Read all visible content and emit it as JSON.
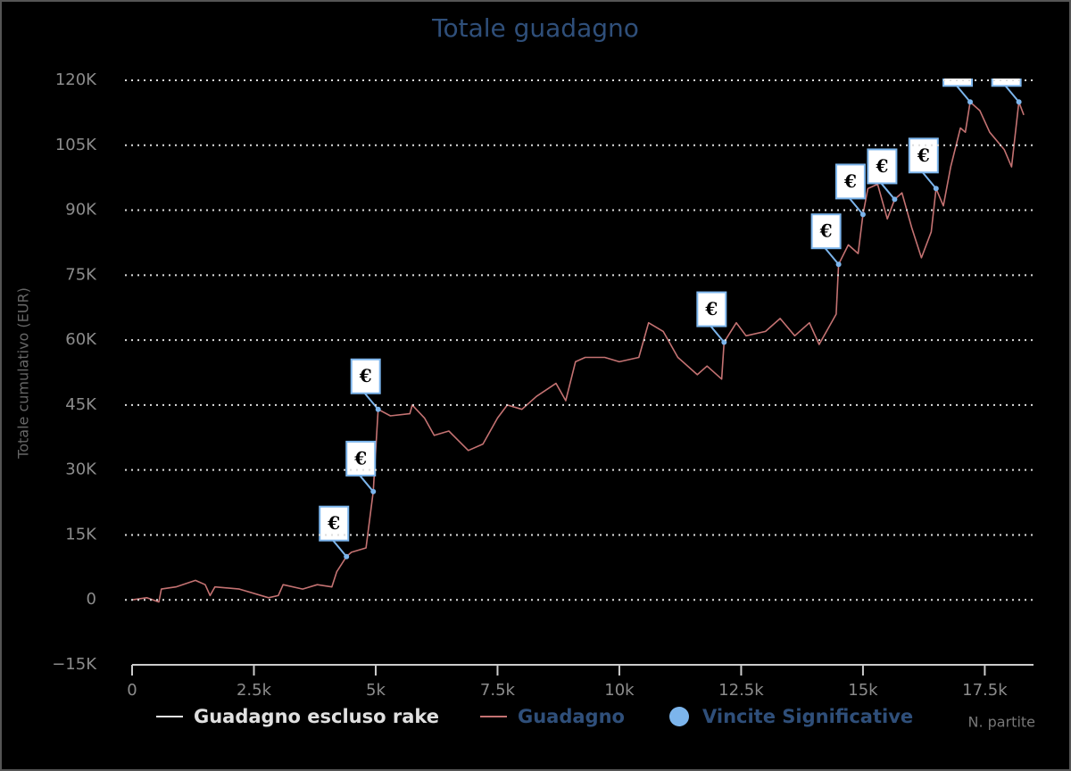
{
  "chart_data": {
    "type": "line",
    "title": "Totale guadagno",
    "y_label": "Totale cumulativo (EUR)",
    "x_label": "N. partite",
    "xlim": [
      0,
      18500
    ],
    "ylim": [
      -15000,
      120000
    ],
    "xticks": [
      0,
      {
        "value": 2500,
        "label": "2.5k"
      },
      {
        "value": 5000,
        "label": "5k"
      },
      {
        "value": 7500,
        "label": "7.5k"
      },
      {
        "value": 10000,
        "label": "10k"
      },
      {
        "value": 12500,
        "label": "12.5k"
      },
      {
        "value": 15000,
        "label": "15k"
      },
      {
        "value": 17500,
        "label": "17.5k"
      }
    ],
    "yticks": [
      {
        "value": -15000,
        "label": "−15K"
      },
      0,
      {
        "value": 15000,
        "label": "15K"
      },
      {
        "value": 30000,
        "label": "30K"
      },
      {
        "value": 45000,
        "label": "45K"
      },
      {
        "value": 60000,
        "label": "60K"
      },
      {
        "value": 75000,
        "label": "75K"
      },
      {
        "value": 90000,
        "label": "90K"
      },
      {
        "value": 105000,
        "label": "105K"
      },
      {
        "value": 120000,
        "label": "120K"
      }
    ],
    "grid": true,
    "x": [
      0,
      300,
      550,
      600,
      900,
      1300,
      1500,
      1600,
      1700,
      2200,
      2800,
      3000,
      3100,
      3500,
      3800,
      4100,
      4200,
      4400,
      4500,
      4800,
      4950,
      5050,
      5300,
      5700,
      5750,
      6000,
      6200,
      6500,
      6900,
      7200,
      7500,
      7700,
      8000,
      8300,
      8700,
      8900,
      9100,
      9300,
      9700,
      10000,
      10400,
      10600,
      10900,
      11200,
      11600,
      11800,
      12100,
      12150,
      12400,
      12600,
      13000,
      13300,
      13600,
      13900,
      14100,
      14300,
      14450,
      14500,
      14700,
      14900,
      15000,
      15100,
      15300,
      15500,
      15650,
      15800,
      16000,
      16200,
      16400,
      16500,
      16650,
      16800,
      17000,
      17100,
      17200,
      17400,
      17600,
      17900,
      18050,
      18200,
      18300
    ],
    "series": [
      {
        "name": "Guadagno escluso rake",
        "color": "#e8e8e8",
        "values": [
          null,
          null,
          null,
          null,
          null,
          null,
          null,
          null,
          null,
          null,
          null,
          null,
          null,
          null,
          null,
          null,
          null,
          null,
          null,
          null,
          null,
          null,
          null,
          null,
          null,
          null,
          null,
          null,
          null,
          null,
          null,
          null,
          null,
          null,
          null,
          null,
          null,
          null,
          null,
          null,
          null,
          null,
          null,
          null,
          null,
          null,
          null,
          null,
          null,
          null,
          null,
          null,
          null,
          null,
          null,
          null,
          null,
          null,
          null,
          null,
          null,
          null,
          null,
          null,
          null,
          null,
          null,
          null,
          null,
          null,
          null,
          null,
          null,
          null,
          null,
          null,
          null,
          null,
          null,
          null,
          null
        ]
      },
      {
        "name": "Guadagno",
        "color": "#c47272",
        "values": [
          0,
          500,
          -500,
          2500,
          3000,
          4500,
          3500,
          1000,
          3000,
          2500,
          500,
          1000,
          3500,
          2500,
          3500,
          3000,
          6500,
          10000,
          11000,
          12000,
          25000,
          44000,
          42500,
          43000,
          45000,
          42000,
          38000,
          39000,
          34500,
          36000,
          42000,
          45000,
          44000,
          47000,
          50000,
          46000,
          55000,
          56000,
          56000,
          55000,
          56000,
          64000,
          62000,
          56000,
          52000,
          54000,
          51000,
          59500,
          64000,
          61000,
          62000,
          65000,
          61000,
          64000,
          59000,
          63000,
          66000,
          77500,
          82000,
          80000,
          89000,
          95000,
          96000,
          88000,
          92500,
          94000,
          86000,
          79000,
          85000,
          95000,
          91000,
          100000,
          109000,
          108000,
          115000,
          113000,
          108000,
          104000,
          100000,
          115000,
          112000
        ]
      },
      {
        "name": "Vincite Significative",
        "color": "#7cb5ec",
        "flag_label": "€",
        "x": [
          4400,
          4950,
          5050,
          12150,
          14500,
          15000,
          15650,
          16500,
          17200,
          18200
        ],
        "values": [
          10000,
          25000,
          44000,
          59500,
          77500,
          89000,
          92500,
          95000,
          115000,
          115000
        ]
      }
    ]
  }
}
